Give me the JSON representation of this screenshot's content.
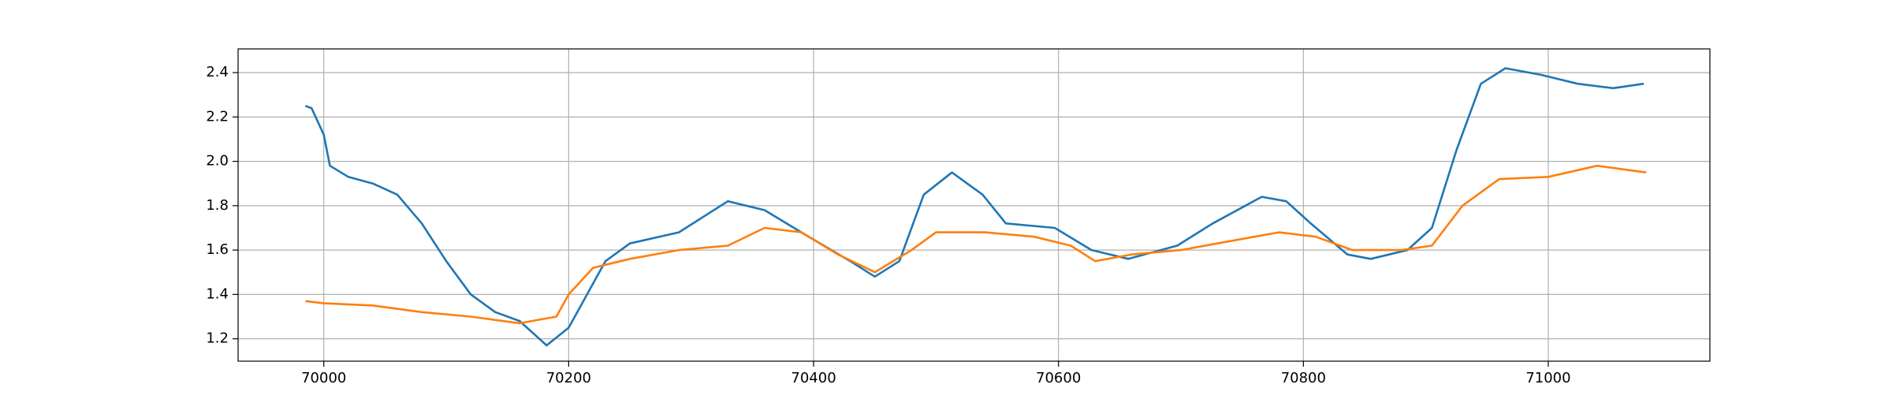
{
  "chart_data": {
    "type": "line",
    "xlim": [
      69930,
      71132
    ],
    "ylim": [
      1.099,
      2.507
    ],
    "xticks": [
      70000,
      70200,
      70400,
      70600,
      70800,
      71000
    ],
    "yticks": [
      1.2,
      1.4,
      1.6,
      1.8,
      {
        "value": 2,
        "label": "2.0"
      },
      2.2,
      2.4
    ],
    "grid": true,
    "series": [
      {
        "color": "#1f77b4",
        "x": [
          69985,
          69990,
          70000,
          70005,
          70020,
          70040,
          70060,
          70080,
          70100,
          70120,
          70140,
          70160,
          70182,
          70200,
          70230,
          70250,
          70290,
          70330,
          70360,
          70390,
          70430,
          70450,
          70470,
          70490,
          70513,
          70538,
          70557,
          70597,
          70627,
          70657,
          70697,
          70726,
          70766,
          70786,
          70806,
          70836,
          70855,
          70885,
          70905,
          70925,
          70945,
          70965,
          70994,
          71024,
          71053,
          71078
        ],
        "values": [
          2.25,
          2.24,
          2.12,
          1.98,
          1.93,
          1.9,
          1.85,
          1.72,
          1.55,
          1.4,
          1.32,
          1.28,
          1.17,
          1.25,
          1.55,
          1.63,
          1.68,
          1.82,
          1.78,
          1.68,
          1.55,
          1.48,
          1.55,
          1.85,
          1.95,
          1.85,
          1.72,
          1.7,
          1.6,
          1.56,
          1.62,
          1.72,
          1.84,
          1.82,
          1.72,
          1.58,
          1.56,
          1.6,
          1.7,
          2.05,
          2.35,
          2.42,
          2.39,
          2.35,
          2.33,
          2.35
        ]
      },
      {
        "color": "#ff7f0e",
        "x": [
          69985,
          70000,
          70040,
          70080,
          70120,
          70160,
          70190,
          70200,
          70220,
          70250,
          70290,
          70330,
          70360,
          70390,
          70420,
          70450,
          70480,
          70500,
          70540,
          70580,
          70610,
          70630,
          70660,
          70700,
          70740,
          70780,
          70810,
          70840,
          70880,
          70905,
          70930,
          70960,
          71000,
          71040,
          71080
        ],
        "values": [
          1.37,
          1.36,
          1.35,
          1.32,
          1.3,
          1.27,
          1.3,
          1.4,
          1.52,
          1.56,
          1.6,
          1.62,
          1.7,
          1.68,
          1.58,
          1.5,
          1.6,
          1.68,
          1.68,
          1.66,
          1.62,
          1.55,
          1.58,
          1.6,
          1.64,
          1.68,
          1.66,
          1.6,
          1.6,
          1.62,
          1.8,
          1.92,
          1.93,
          1.98,
          1.95
        ]
      }
    ]
  }
}
